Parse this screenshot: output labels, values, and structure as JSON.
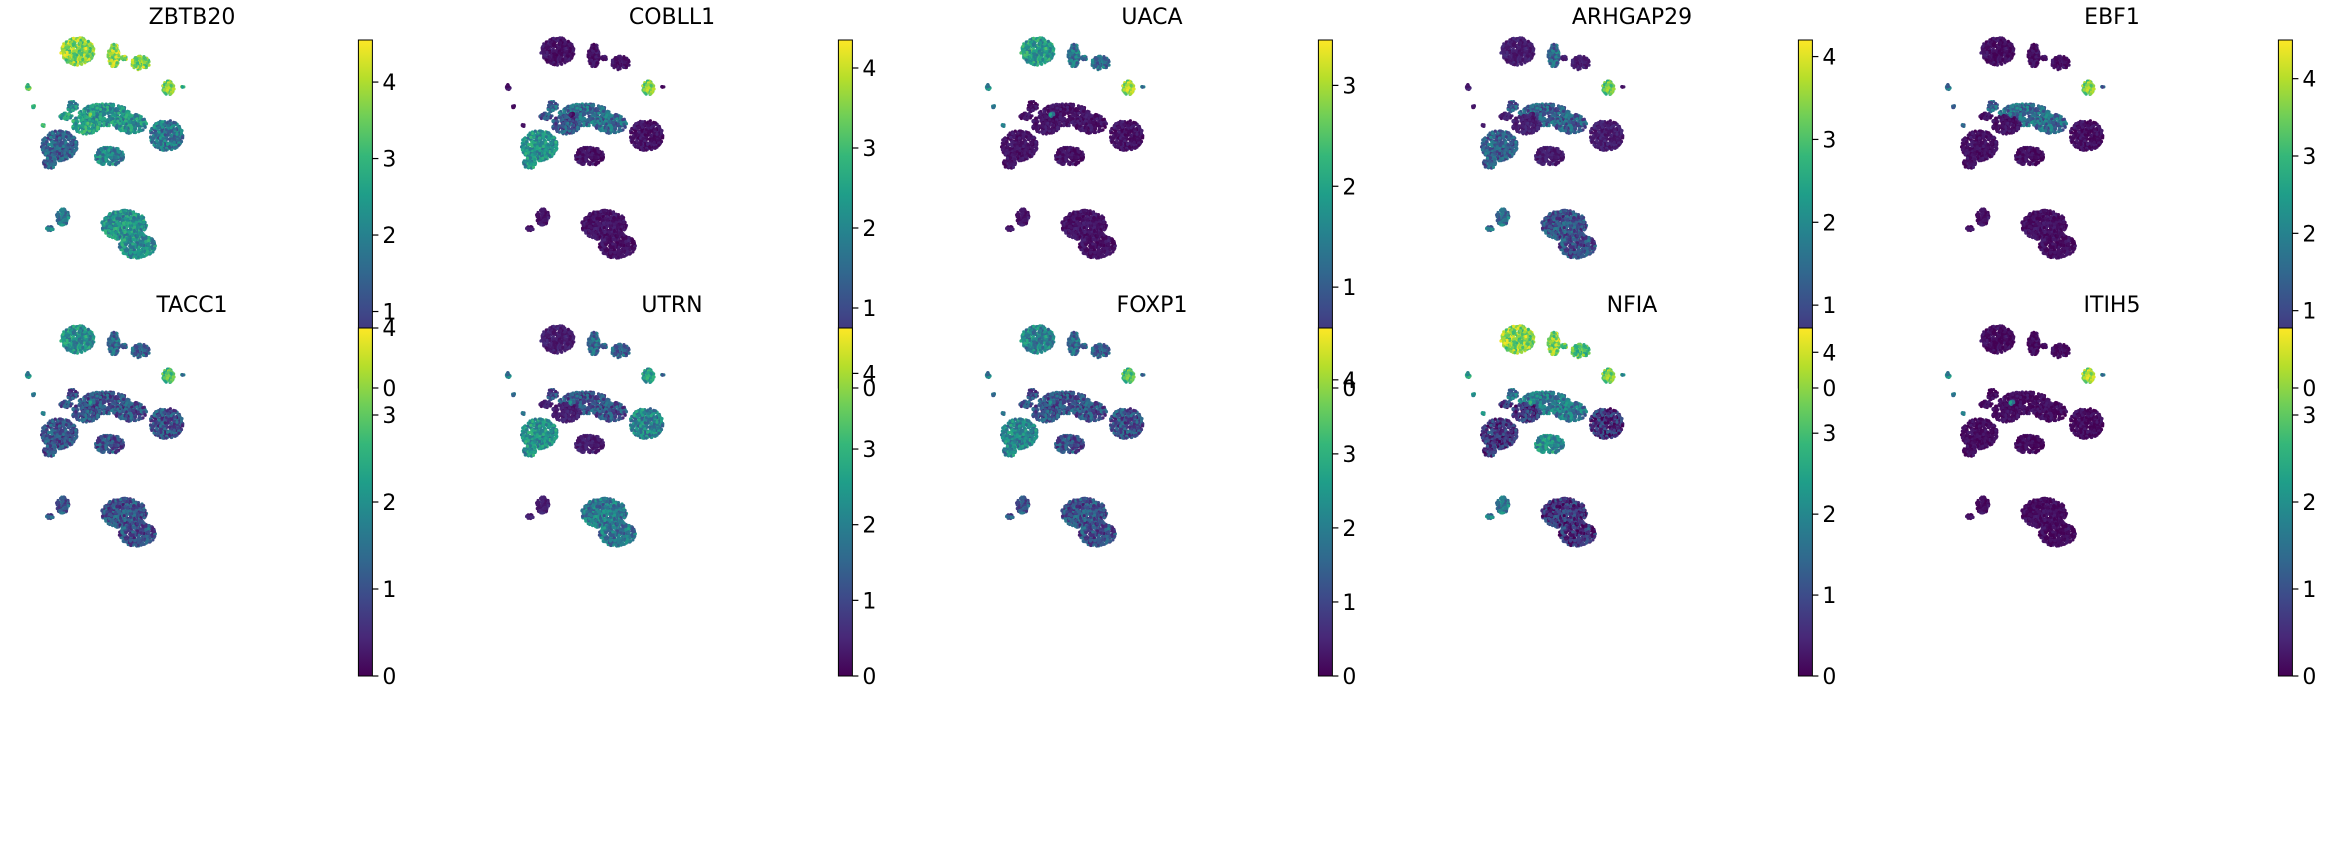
{
  "figure": {
    "title": "",
    "layout": "2 rows x 5 columns of UMAP feature plots with colorbars",
    "colormap": "viridis",
    "colormap_stops": [
      "#440154",
      "#482878",
      "#3e4989",
      "#31688e",
      "#26828e",
      "#1f9e89",
      "#35b779",
      "#6ece58",
      "#b5de2b",
      "#fde725"
    ]
  },
  "chart_data": [
    {
      "type": "scatter",
      "title": "ZBTB20",
      "colorbar": {
        "min": 0,
        "max": 4.55,
        "ticks": [
          "0",
          "1",
          "2",
          "3",
          "4"
        ]
      },
      "base_level": 0.3,
      "hot_clusters": [
        "A",
        "B",
        "C",
        "D",
        "L"
      ],
      "hot_levels": [
        0.82,
        0.85,
        0.8,
        0.8,
        0.7
      ],
      "warm_clusters": [
        "E",
        "F",
        "G",
        "H",
        "I",
        "J",
        "K"
      ],
      "warm_levels": [
        0.5,
        0.55,
        0.4,
        0.3,
        0.45,
        0.4,
        0.5
      ]
    },
    {
      "type": "scatter",
      "title": "COBLL1",
      "colorbar": {
        "min": 0,
        "max": 4.35,
        "ticks": [
          "0",
          "1",
          "2",
          "3",
          "4"
        ]
      },
      "base_level": 0.05,
      "hot_clusters": [
        "D"
      ],
      "hot_levels": [
        0.8
      ],
      "warm_clusters": [
        "H",
        "E",
        "F"
      ],
      "warm_levels": [
        0.5,
        0.35,
        0.25
      ]
    },
    {
      "type": "scatter",
      "title": "UACA",
      "colorbar": {
        "min": 0,
        "max": 3.45,
        "ticks": [
          "0",
          "1",
          "2",
          "3"
        ]
      },
      "base_level": 0.05,
      "hot_clusters": [
        "D",
        "A"
      ],
      "hot_levels": [
        0.85,
        0.55
      ],
      "warm_clusters": [
        "B",
        "L",
        "C"
      ],
      "warm_levels": [
        0.4,
        0.45,
        0.35
      ]
    },
    {
      "type": "scatter",
      "title": "ARHGAP29",
      "colorbar": {
        "min": 0,
        "max": 4.2,
        "ticks": [
          "0",
          "1",
          "2",
          "3",
          "4"
        ]
      },
      "base_level": 0.08,
      "hot_clusters": [
        "D"
      ],
      "hot_levels": [
        0.75
      ],
      "warm_clusters": [
        "B",
        "E",
        "J",
        "K",
        "H"
      ],
      "warm_levels": [
        0.35,
        0.3,
        0.35,
        0.25,
        0.3
      ]
    },
    {
      "type": "scatter",
      "title": "EBF1",
      "colorbar": {
        "min": 0,
        "max": 4.5,
        "ticks": [
          "0",
          "1",
          "2",
          "3",
          "4"
        ]
      },
      "base_level": 0.04,
      "hot_clusters": [
        "D"
      ],
      "hot_levels": [
        0.8
      ],
      "warm_clusters": [
        "L",
        "E"
      ],
      "warm_levels": [
        0.35,
        0.35
      ]
    },
    {
      "type": "scatter",
      "title": "TACC1",
      "colorbar": {
        "min": 0,
        "max": 4.0,
        "ticks": [
          "0",
          "1",
          "2",
          "3",
          "4"
        ]
      },
      "base_level": 0.25,
      "hot_clusters": [
        "D"
      ],
      "hot_levels": [
        0.7
      ],
      "warm_clusters": [
        "A",
        "L",
        "B",
        "C"
      ],
      "warm_levels": [
        0.5,
        0.45,
        0.35,
        0.3
      ]
    },
    {
      "type": "scatter",
      "title": "UTRN",
      "colorbar": {
        "min": 0,
        "max": 4.6,
        "ticks": [
          "0",
          "1",
          "2",
          "3",
          "4"
        ]
      },
      "base_level": 0.08,
      "hot_clusters": [
        "D",
        "H",
        "G"
      ],
      "hot_levels": [
        0.55,
        0.5,
        0.45
      ],
      "warm_clusters": [
        "B",
        "C",
        "L",
        "E",
        "K"
      ],
      "warm_levels": [
        0.35,
        0.3,
        0.4,
        0.25,
        0.4
      ]
    },
    {
      "type": "scatter",
      "title": "FOXP1",
      "colorbar": {
        "min": 0,
        "max": 4.7,
        "ticks": [
          "0",
          "1",
          "2",
          "3",
          "4"
        ]
      },
      "base_level": 0.25,
      "hot_clusters": [
        "D"
      ],
      "hot_levels": [
        0.7
      ],
      "warm_clusters": [
        "A",
        "H",
        "L",
        "B",
        "C"
      ],
      "warm_levels": [
        0.45,
        0.45,
        0.4,
        0.35,
        0.3
      ]
    },
    {
      "type": "scatter",
      "title": "NFIA",
      "colorbar": {
        "min": 0,
        "max": 4.3,
        "ticks": [
          "0",
          "1",
          "2",
          "3",
          "4"
        ]
      },
      "base_level": 0.15,
      "hot_clusters": [
        "A",
        "B",
        "C",
        "D"
      ],
      "hot_levels": [
        0.82,
        0.82,
        0.7,
        0.78
      ],
      "warm_clusters": [
        "L",
        "E",
        "I",
        "J"
      ],
      "warm_levels": [
        0.55,
        0.4,
        0.5,
        0.4
      ]
    },
    {
      "type": "scatter",
      "title": "ITIH5",
      "colorbar": {
        "min": 0,
        "max": 4.0,
        "ticks": [
          "0",
          "1",
          "2",
          "3"
        ]
      },
      "base_level": 0.03,
      "hot_clusters": [
        "D"
      ],
      "hot_levels": [
        0.85
      ],
      "warm_clusters": [
        "L"
      ],
      "warm_levels": [
        0.45
      ]
    }
  ]
}
